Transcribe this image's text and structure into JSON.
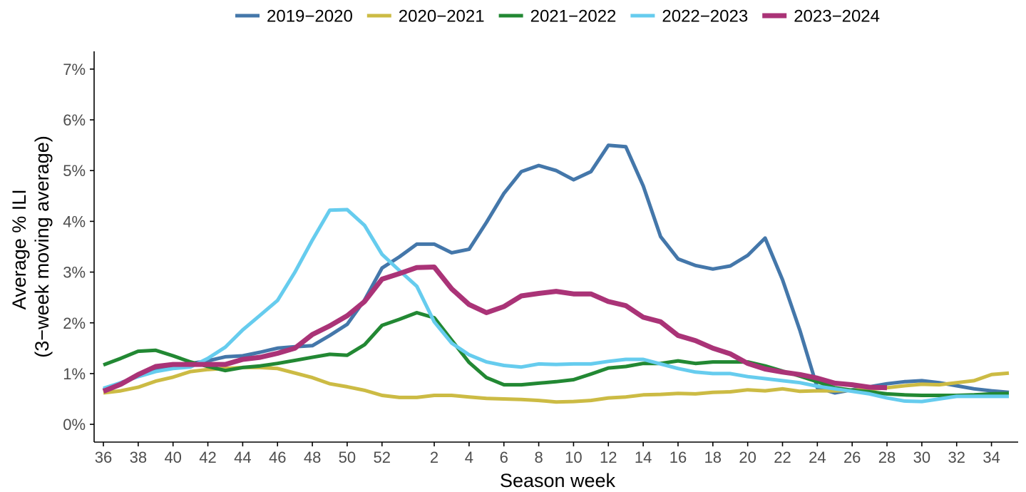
{
  "chart_data": {
    "type": "line",
    "xlabel": "Season week",
    "ylabel_lines": [
      "Average % ILI",
      "(3−week moving average)"
    ],
    "x_ticks": [
      {
        "label": "36",
        "index": 0
      },
      {
        "label": "38",
        "index": 2
      },
      {
        "label": "40",
        "index": 4
      },
      {
        "label": "42",
        "index": 6
      },
      {
        "label": "44",
        "index": 8
      },
      {
        "label": "46",
        "index": 10
      },
      {
        "label": "48",
        "index": 12
      },
      {
        "label": "50",
        "index": 14
      },
      {
        "label": "52",
        "index": 16
      },
      {
        "label": "2",
        "index": 19
      },
      {
        "label": "4",
        "index": 21
      },
      {
        "label": "6",
        "index": 23
      },
      {
        "label": "8",
        "index": 25
      },
      {
        "label": "10",
        "index": 27
      },
      {
        "label": "12",
        "index": 29
      },
      {
        "label": "14",
        "index": 31
      },
      {
        "label": "16",
        "index": 33
      },
      {
        "label": "18",
        "index": 35
      },
      {
        "label": "20",
        "index": 37
      },
      {
        "label": "22",
        "index": 39
      },
      {
        "label": "24",
        "index": 41
      },
      {
        "label": "26",
        "index": 43
      },
      {
        "label": "28",
        "index": 45
      },
      {
        "label": "30",
        "index": 47
      },
      {
        "label": "32",
        "index": 49
      },
      {
        "label": "34",
        "index": 51
      }
    ],
    "x_range": [
      0,
      52
    ],
    "y_ticks": [
      {
        "label": "0%",
        "value": 0
      },
      {
        "label": "1%",
        "value": 1
      },
      {
        "label": "2%",
        "value": 2
      },
      {
        "label": "3%",
        "value": 3
      },
      {
        "label": "4%",
        "value": 4
      },
      {
        "label": "5%",
        "value": 5
      },
      {
        "label": "6%",
        "value": 6
      },
      {
        "label": "7%",
        "value": 7
      }
    ],
    "ylim": [
      -0.35,
      7.35
    ],
    "grid": false,
    "legend_position": "top",
    "series": [
      {
        "name": "2019−2020",
        "color": "#4477aa",
        "values": [
          0.68,
          0.82,
          0.95,
          1.1,
          1.15,
          1.2,
          1.25,
          1.33,
          1.35,
          1.42,
          1.5,
          1.53,
          1.55,
          1.75,
          1.97,
          2.45,
          3.08,
          3.3,
          3.55,
          3.55,
          3.38,
          3.45,
          3.98,
          4.55,
          4.98,
          5.1,
          5.0,
          4.82,
          4.98,
          5.5,
          5.47,
          4.7,
          3.7,
          3.26,
          3.13,
          3.06,
          3.12,
          3.33,
          3.67,
          2.85,
          1.85,
          0.72,
          0.62,
          0.68,
          0.74,
          0.8,
          0.84,
          0.86,
          0.82,
          0.76,
          0.7,
          0.66,
          0.63
        ],
        "stroke_width": 5
      },
      {
        "name": "2020−2021",
        "color": "#ccbb44",
        "values": [
          0.62,
          0.66,
          0.73,
          0.85,
          0.93,
          1.04,
          1.08,
          1.1,
          1.12,
          1.12,
          1.1,
          1.01,
          0.92,
          0.8,
          0.74,
          0.67,
          0.57,
          0.53,
          0.53,
          0.57,
          0.57,
          0.54,
          0.51,
          0.5,
          0.49,
          0.47,
          0.44,
          0.45,
          0.47,
          0.52,
          0.54,
          0.58,
          0.59,
          0.61,
          0.6,
          0.63,
          0.64,
          0.68,
          0.66,
          0.7,
          0.65,
          0.66,
          0.66,
          0.67,
          0.69,
          0.72,
          0.76,
          0.79,
          0.78,
          0.82,
          0.86,
          0.98,
          1.01
        ],
        "stroke_width": 5
      },
      {
        "name": "2021−2022",
        "color": "#228833",
        "values": [
          1.17,
          1.3,
          1.44,
          1.46,
          1.35,
          1.23,
          1.14,
          1.06,
          1.12,
          1.15,
          1.2,
          1.26,
          1.32,
          1.38,
          1.36,
          1.57,
          1.95,
          2.07,
          2.2,
          2.1,
          1.66,
          1.22,
          0.92,
          0.78,
          0.78,
          0.81,
          0.84,
          0.88,
          0.99,
          1.11,
          1.14,
          1.2,
          1.2,
          1.25,
          1.2,
          1.23,
          1.23,
          1.23,
          1.15,
          1.05,
          0.95,
          0.84,
          0.72,
          0.67,
          0.64,
          0.6,
          0.58,
          0.57,
          0.57,
          0.57,
          0.58,
          0.6,
          0.61
        ],
        "stroke_width": 5
      },
      {
        "name": "2022−2023",
        "color": "#66ccee",
        "values": [
          0.71,
          0.82,
          0.94,
          1.04,
          1.1,
          1.13,
          1.3,
          1.52,
          1.86,
          2.15,
          2.44,
          3.0,
          3.63,
          4.22,
          4.23,
          3.92,
          3.35,
          3.03,
          2.72,
          2.02,
          1.6,
          1.37,
          1.23,
          1.16,
          1.13,
          1.19,
          1.18,
          1.19,
          1.19,
          1.24,
          1.28,
          1.28,
          1.19,
          1.1,
          1.03,
          1.0,
          1.0,
          0.94,
          0.9,
          0.86,
          0.82,
          0.75,
          0.7,
          0.65,
          0.6,
          0.52,
          0.46,
          0.45,
          0.5,
          0.55,
          0.55,
          0.55,
          0.55
        ],
        "stroke_width": 5
      },
      {
        "name": "2023−2024",
        "color": "#aa3377",
        "values": [
          0.65,
          0.79,
          0.98,
          1.14,
          1.18,
          1.18,
          1.18,
          1.18,
          1.28,
          1.32,
          1.4,
          1.5,
          1.77,
          1.94,
          2.14,
          2.42,
          2.86,
          2.97,
          3.09,
          3.1,
          2.67,
          2.36,
          2.2,
          2.32,
          2.53,
          2.58,
          2.62,
          2.57,
          2.57,
          2.42,
          2.34,
          2.11,
          2.02,
          1.75,
          1.65,
          1.5,
          1.39,
          1.2,
          1.09,
          1.03,
          0.98,
          0.91,
          0.81,
          0.78,
          0.73,
          0.72
        ],
        "stroke_width": 7
      }
    ]
  }
}
